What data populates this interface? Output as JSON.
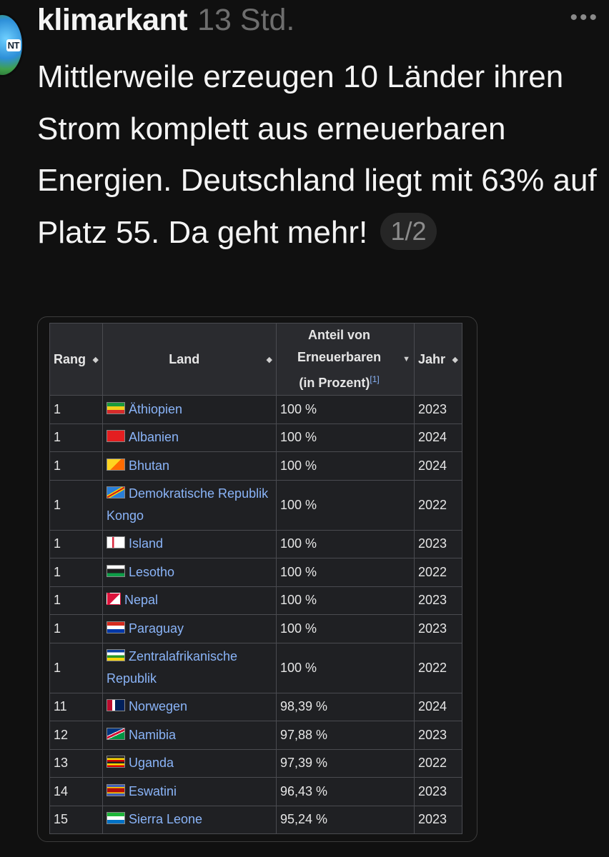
{
  "post": {
    "username": "klimarkant",
    "time": "13 Std.",
    "text": "Mittlerweile erzeugen 10 Länder ihren Strom komplett aus erneuerbaren Energien. Deutschland liegt mit 63% auf Platz 55. Da geht mehr!",
    "pager": "1/2",
    "avatar_badge": "NT",
    "more_icon": "more-horizontal-icon"
  },
  "table": {
    "headers": {
      "rang": "Rang",
      "land": "Land",
      "anteil_line1": "Anteil von",
      "anteil_line2": "Erneuerbaren",
      "anteil_line3": "(in Prozent)",
      "anteil_ref": "[1]",
      "jahr": "Jahr"
    },
    "rows": [
      {
        "rang": "1",
        "land": "Äthiopien",
        "anteil": "100 %",
        "jahr": "2023",
        "flag": "f-eth"
      },
      {
        "rang": "1",
        "land": "Albanien",
        "anteil": "100 %",
        "jahr": "2024",
        "flag": "f-alb"
      },
      {
        "rang": "1",
        "land": "Bhutan",
        "anteil": "100 %",
        "jahr": "2024",
        "flag": "f-btn"
      },
      {
        "rang": "1",
        "land": "Demokratische Republik Kongo",
        "anteil": "100 %",
        "jahr": "2022",
        "flag": "f-cod"
      },
      {
        "rang": "1",
        "land": "Island",
        "anteil": "100 %",
        "jahr": "2023",
        "flag": "f-isl"
      },
      {
        "rang": "1",
        "land": "Lesotho",
        "anteil": "100 %",
        "jahr": "2022",
        "flag": "f-lso"
      },
      {
        "rang": "1",
        "land": "Nepal",
        "anteil": "100 %",
        "jahr": "2023",
        "flag": "f-npl"
      },
      {
        "rang": "1",
        "land": "Paraguay",
        "anteil": "100 %",
        "jahr": "2023",
        "flag": "f-pry"
      },
      {
        "rang": "1",
        "land": "Zentralafrikanische Republik",
        "anteil": "100 %",
        "jahr": "2022",
        "flag": "f-caf"
      },
      {
        "rang": "11",
        "land": "Norwegen",
        "anteil": "98,39 %",
        "jahr": "2024",
        "flag": "f-nor"
      },
      {
        "rang": "12",
        "land": "Namibia",
        "anteil": "97,88 %",
        "jahr": "2023",
        "flag": "f-nam"
      },
      {
        "rang": "13",
        "land": "Uganda",
        "anteil": "97,39 %",
        "jahr": "2022",
        "flag": "f-uga"
      },
      {
        "rang": "14",
        "land": "Eswatini",
        "anteil": "96,43 %",
        "jahr": "2023",
        "flag": "f-swz"
      },
      {
        "rang": "15",
        "land": "Sierra Leone",
        "anteil": "95,24 %",
        "jahr": "2023",
        "flag": "f-sle"
      }
    ]
  }
}
